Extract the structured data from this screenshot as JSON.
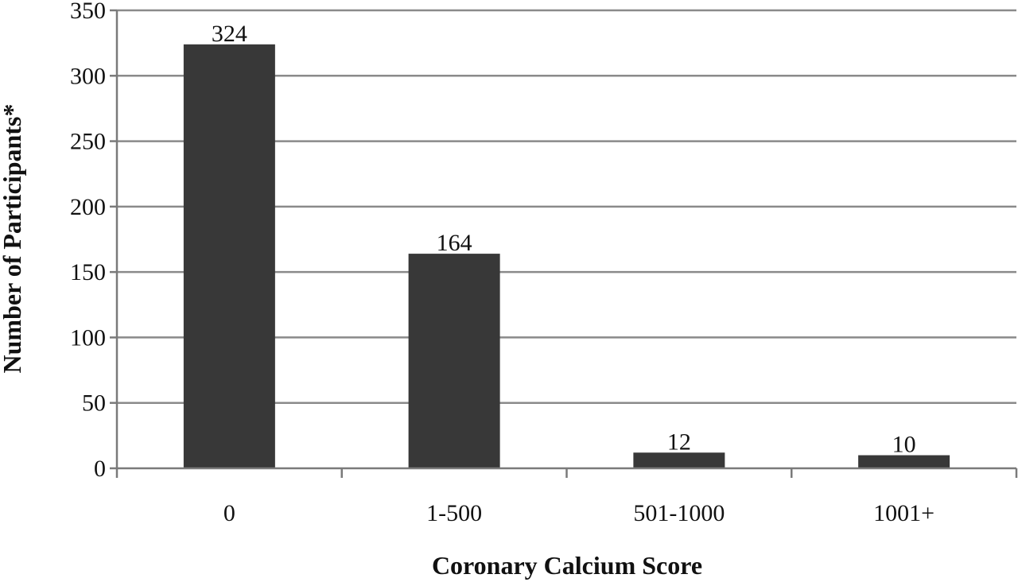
{
  "chart_data": {
    "type": "bar",
    "title": "",
    "xlabel": "Coronary Calcium Score",
    "ylabel": "Number of Participants*",
    "categories": [
      "0",
      "1-500",
      "501-1000",
      "1001+"
    ],
    "values": [
      324,
      164,
      12,
      10
    ],
    "data_labels": [
      "324",
      "164",
      "12",
      "10"
    ],
    "ylim": [
      0,
      350
    ],
    "yticks": [
      0,
      50,
      100,
      150,
      200,
      250,
      300,
      350
    ],
    "ytick_labels": [
      "0",
      "50",
      "100",
      "150",
      "200",
      "250",
      "300",
      "350"
    ],
    "grid": true,
    "legend": "none",
    "colors": {
      "bar": "#383838",
      "grid": "#8a8a8a",
      "axis": "#7a7a7a",
      "text": "#111111"
    }
  }
}
